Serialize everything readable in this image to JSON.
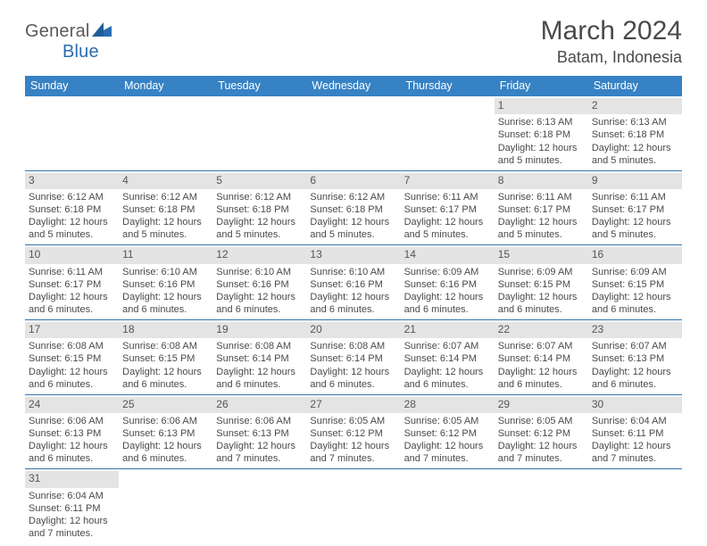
{
  "logo": {
    "text1": "General",
    "text2": "Blue"
  },
  "title": "March 2024",
  "location": "Batam, Indonesia",
  "weekdays": [
    "Sunday",
    "Monday",
    "Tuesday",
    "Wednesday",
    "Thursday",
    "Friday",
    "Saturday"
  ],
  "colors": {
    "header_bg": "#3682c4",
    "row_divider": "#3173ad",
    "daynum_bg": "#e4e4e4",
    "logo_blue": "#2a6cb0"
  },
  "weeks": [
    [
      {
        "empty": true
      },
      {
        "empty": true
      },
      {
        "empty": true
      },
      {
        "empty": true
      },
      {
        "empty": true
      },
      {
        "day": "1",
        "sunrise": "Sunrise: 6:13 AM",
        "sunset": "Sunset: 6:18 PM",
        "daylight1": "Daylight: 12 hours",
        "daylight2": "and 5 minutes."
      },
      {
        "day": "2",
        "sunrise": "Sunrise: 6:13 AM",
        "sunset": "Sunset: 6:18 PM",
        "daylight1": "Daylight: 12 hours",
        "daylight2": "and 5 minutes."
      }
    ],
    [
      {
        "day": "3",
        "sunrise": "Sunrise: 6:12 AM",
        "sunset": "Sunset: 6:18 PM",
        "daylight1": "Daylight: 12 hours",
        "daylight2": "and 5 minutes."
      },
      {
        "day": "4",
        "sunrise": "Sunrise: 6:12 AM",
        "sunset": "Sunset: 6:18 PM",
        "daylight1": "Daylight: 12 hours",
        "daylight2": "and 5 minutes."
      },
      {
        "day": "5",
        "sunrise": "Sunrise: 6:12 AM",
        "sunset": "Sunset: 6:18 PM",
        "daylight1": "Daylight: 12 hours",
        "daylight2": "and 5 minutes."
      },
      {
        "day": "6",
        "sunrise": "Sunrise: 6:12 AM",
        "sunset": "Sunset: 6:18 PM",
        "daylight1": "Daylight: 12 hours",
        "daylight2": "and 5 minutes."
      },
      {
        "day": "7",
        "sunrise": "Sunrise: 6:11 AM",
        "sunset": "Sunset: 6:17 PM",
        "daylight1": "Daylight: 12 hours",
        "daylight2": "and 5 minutes."
      },
      {
        "day": "8",
        "sunrise": "Sunrise: 6:11 AM",
        "sunset": "Sunset: 6:17 PM",
        "daylight1": "Daylight: 12 hours",
        "daylight2": "and 5 minutes."
      },
      {
        "day": "9",
        "sunrise": "Sunrise: 6:11 AM",
        "sunset": "Sunset: 6:17 PM",
        "daylight1": "Daylight: 12 hours",
        "daylight2": "and 5 minutes."
      }
    ],
    [
      {
        "day": "10",
        "sunrise": "Sunrise: 6:11 AM",
        "sunset": "Sunset: 6:17 PM",
        "daylight1": "Daylight: 12 hours",
        "daylight2": "and 6 minutes."
      },
      {
        "day": "11",
        "sunrise": "Sunrise: 6:10 AM",
        "sunset": "Sunset: 6:16 PM",
        "daylight1": "Daylight: 12 hours",
        "daylight2": "and 6 minutes."
      },
      {
        "day": "12",
        "sunrise": "Sunrise: 6:10 AM",
        "sunset": "Sunset: 6:16 PM",
        "daylight1": "Daylight: 12 hours",
        "daylight2": "and 6 minutes."
      },
      {
        "day": "13",
        "sunrise": "Sunrise: 6:10 AM",
        "sunset": "Sunset: 6:16 PM",
        "daylight1": "Daylight: 12 hours",
        "daylight2": "and 6 minutes."
      },
      {
        "day": "14",
        "sunrise": "Sunrise: 6:09 AM",
        "sunset": "Sunset: 6:16 PM",
        "daylight1": "Daylight: 12 hours",
        "daylight2": "and 6 minutes."
      },
      {
        "day": "15",
        "sunrise": "Sunrise: 6:09 AM",
        "sunset": "Sunset: 6:15 PM",
        "daylight1": "Daylight: 12 hours",
        "daylight2": "and 6 minutes."
      },
      {
        "day": "16",
        "sunrise": "Sunrise: 6:09 AM",
        "sunset": "Sunset: 6:15 PM",
        "daylight1": "Daylight: 12 hours",
        "daylight2": "and 6 minutes."
      }
    ],
    [
      {
        "day": "17",
        "sunrise": "Sunrise: 6:08 AM",
        "sunset": "Sunset: 6:15 PM",
        "daylight1": "Daylight: 12 hours",
        "daylight2": "and 6 minutes."
      },
      {
        "day": "18",
        "sunrise": "Sunrise: 6:08 AM",
        "sunset": "Sunset: 6:15 PM",
        "daylight1": "Daylight: 12 hours",
        "daylight2": "and 6 minutes."
      },
      {
        "day": "19",
        "sunrise": "Sunrise: 6:08 AM",
        "sunset": "Sunset: 6:14 PM",
        "daylight1": "Daylight: 12 hours",
        "daylight2": "and 6 minutes."
      },
      {
        "day": "20",
        "sunrise": "Sunrise: 6:08 AM",
        "sunset": "Sunset: 6:14 PM",
        "daylight1": "Daylight: 12 hours",
        "daylight2": "and 6 minutes."
      },
      {
        "day": "21",
        "sunrise": "Sunrise: 6:07 AM",
        "sunset": "Sunset: 6:14 PM",
        "daylight1": "Daylight: 12 hours",
        "daylight2": "and 6 minutes."
      },
      {
        "day": "22",
        "sunrise": "Sunrise: 6:07 AM",
        "sunset": "Sunset: 6:14 PM",
        "daylight1": "Daylight: 12 hours",
        "daylight2": "and 6 minutes."
      },
      {
        "day": "23",
        "sunrise": "Sunrise: 6:07 AM",
        "sunset": "Sunset: 6:13 PM",
        "daylight1": "Daylight: 12 hours",
        "daylight2": "and 6 minutes."
      }
    ],
    [
      {
        "day": "24",
        "sunrise": "Sunrise: 6:06 AM",
        "sunset": "Sunset: 6:13 PM",
        "daylight1": "Daylight: 12 hours",
        "daylight2": "and 6 minutes."
      },
      {
        "day": "25",
        "sunrise": "Sunrise: 6:06 AM",
        "sunset": "Sunset: 6:13 PM",
        "daylight1": "Daylight: 12 hours",
        "daylight2": "and 6 minutes."
      },
      {
        "day": "26",
        "sunrise": "Sunrise: 6:06 AM",
        "sunset": "Sunset: 6:13 PM",
        "daylight1": "Daylight: 12 hours",
        "daylight2": "and 7 minutes."
      },
      {
        "day": "27",
        "sunrise": "Sunrise: 6:05 AM",
        "sunset": "Sunset: 6:12 PM",
        "daylight1": "Daylight: 12 hours",
        "daylight2": "and 7 minutes."
      },
      {
        "day": "28",
        "sunrise": "Sunrise: 6:05 AM",
        "sunset": "Sunset: 6:12 PM",
        "daylight1": "Daylight: 12 hours",
        "daylight2": "and 7 minutes."
      },
      {
        "day": "29",
        "sunrise": "Sunrise: 6:05 AM",
        "sunset": "Sunset: 6:12 PM",
        "daylight1": "Daylight: 12 hours",
        "daylight2": "and 7 minutes."
      },
      {
        "day": "30",
        "sunrise": "Sunrise: 6:04 AM",
        "sunset": "Sunset: 6:11 PM",
        "daylight1": "Daylight: 12 hours",
        "daylight2": "and 7 minutes."
      }
    ],
    [
      {
        "day": "31",
        "sunrise": "Sunrise: 6:04 AM",
        "sunset": "Sunset: 6:11 PM",
        "daylight1": "Daylight: 12 hours",
        "daylight2": "and 7 minutes."
      },
      {
        "empty": true
      },
      {
        "empty": true
      },
      {
        "empty": true
      },
      {
        "empty": true
      },
      {
        "empty": true
      },
      {
        "empty": true
      }
    ]
  ]
}
